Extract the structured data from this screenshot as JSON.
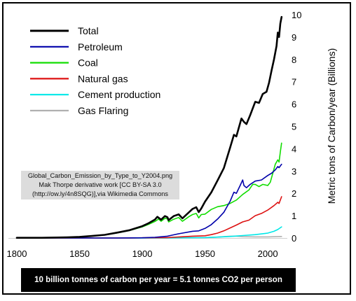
{
  "chart_data": {
    "type": "line",
    "title": "",
    "xlabel": "",
    "ylabel": "Metric tons of Carbon/year (Billions)",
    "xlim": [
      1800,
      2010
    ],
    "ylim": [
      0,
      10
    ],
    "x_ticks": [
      "1800",
      "1850",
      "1900",
      "1950",
      "2000"
    ],
    "y_ticks": [
      "0",
      "1",
      "2",
      "3",
      "4",
      "5",
      "6",
      "7",
      "8",
      "9",
      "10"
    ],
    "legend": {
      "placement": "top-left"
    },
    "series": [
      {
        "name": "Total",
        "color": "#000000",
        "width": 2.6,
        "points": [
          [
            1800,
            0.01
          ],
          [
            1820,
            0.01
          ],
          [
            1840,
            0.03
          ],
          [
            1850,
            0.05
          ],
          [
            1860,
            0.09
          ],
          [
            1870,
            0.14
          ],
          [
            1880,
            0.24
          ],
          [
            1890,
            0.35
          ],
          [
            1900,
            0.53
          ],
          [
            1905,
            0.66
          ],
          [
            1910,
            0.82
          ],
          [
            1912,
            0.95
          ],
          [
            1915,
            0.82
          ],
          [
            1918,
            0.98
          ],
          [
            1920,
            0.93
          ],
          [
            1921,
            0.8
          ],
          [
            1925,
            0.98
          ],
          [
            1929,
            1.06
          ],
          [
            1932,
            0.88
          ],
          [
            1937,
            1.14
          ],
          [
            1940,
            1.3
          ],
          [
            1943,
            1.38
          ],
          [
            1945,
            1.16
          ],
          [
            1947,
            1.32
          ],
          [
            1950,
            1.63
          ],
          [
            1955,
            2.04
          ],
          [
            1960,
            2.58
          ],
          [
            1965,
            3.13
          ],
          [
            1970,
            4.05
          ],
          [
            1973,
            4.62
          ],
          [
            1975,
            4.55
          ],
          [
            1979,
            5.35
          ],
          [
            1981,
            5.2
          ],
          [
            1983,
            5.1
          ],
          [
            1986,
            5.5
          ],
          [
            1990,
            6.1
          ],
          [
            1993,
            6.05
          ],
          [
            1996,
            6.45
          ],
          [
            1999,
            6.55
          ],
          [
            2001,
            6.95
          ],
          [
            2003,
            7.5
          ],
          [
            2005,
            8.0
          ],
          [
            2007,
            8.6
          ],
          [
            2008,
            9.2
          ],
          [
            2009,
            9.0
          ],
          [
            2010,
            9.6
          ],
          [
            2011,
            9.9
          ]
        ]
      },
      {
        "name": "Petroleum",
        "color": "#0000aa",
        "width": 1.6,
        "points": [
          [
            1800,
            0
          ],
          [
            1880,
            0
          ],
          [
            1900,
            0.01
          ],
          [
            1910,
            0.03
          ],
          [
            1920,
            0.08
          ],
          [
            1930,
            0.2
          ],
          [
            1940,
            0.3
          ],
          [
            1945,
            0.32
          ],
          [
            1950,
            0.43
          ],
          [
            1955,
            0.6
          ],
          [
            1960,
            0.85
          ],
          [
            1965,
            1.15
          ],
          [
            1970,
            1.65
          ],
          [
            1973,
            2.05
          ],
          [
            1975,
            2.0
          ],
          [
            1978,
            2.35
          ],
          [
            1980,
            2.6
          ],
          [
            1981,
            2.35
          ],
          [
            1983,
            2.25
          ],
          [
            1986,
            2.4
          ],
          [
            1990,
            2.55
          ],
          [
            1995,
            2.6
          ],
          [
            2000,
            2.8
          ],
          [
            2003,
            2.9
          ],
          [
            2006,
            3.05
          ],
          [
            2008,
            3.2
          ],
          [
            2009,
            3.15
          ],
          [
            2011,
            3.3
          ]
        ]
      },
      {
        "name": "Coal",
        "color": "#11dd00",
        "width": 1.6,
        "points": [
          [
            1800,
            0.01
          ],
          [
            1840,
            0.03
          ],
          [
            1850,
            0.05
          ],
          [
            1860,
            0.09
          ],
          [
            1870,
            0.14
          ],
          [
            1880,
            0.23
          ],
          [
            1890,
            0.34
          ],
          [
            1900,
            0.5
          ],
          [
            1905,
            0.61
          ],
          [
            1910,
            0.74
          ],
          [
            1913,
            0.85
          ],
          [
            1915,
            0.75
          ],
          [
            1918,
            0.88
          ],
          [
            1920,
            0.86
          ],
          [
            1921,
            0.72
          ],
          [
            1925,
            0.84
          ],
          [
            1929,
            0.92
          ],
          [
            1932,
            0.75
          ],
          [
            1937,
            0.95
          ],
          [
            1940,
            1.05
          ],
          [
            1943,
            1.1
          ],
          [
            1945,
            0.9
          ],
          [
            1947,
            1.05
          ],
          [
            1950,
            1.07
          ],
          [
            1955,
            1.28
          ],
          [
            1960,
            1.4
          ],
          [
            1965,
            1.45
          ],
          [
            1970,
            1.55
          ],
          [
            1975,
            1.7
          ],
          [
            1980,
            1.95
          ],
          [
            1985,
            2.15
          ],
          [
            1988,
            2.4
          ],
          [
            1990,
            2.4
          ],
          [
            1993,
            2.3
          ],
          [
            1996,
            2.4
          ],
          [
            2000,
            2.35
          ],
          [
            2002,
            2.5
          ],
          [
            2004,
            2.9
          ],
          [
            2006,
            3.3
          ],
          [
            2008,
            3.5
          ],
          [
            2009,
            3.4
          ],
          [
            2010,
            3.85
          ],
          [
            2011,
            4.25
          ]
        ]
      },
      {
        "name": "Natural gas",
        "color": "#dd1111",
        "width": 1.6,
        "points": [
          [
            1800,
            0
          ],
          [
            1890,
            0
          ],
          [
            1900,
            0.01
          ],
          [
            1920,
            0.02
          ],
          [
            1930,
            0.05
          ],
          [
            1940,
            0.08
          ],
          [
            1950,
            0.1
          ],
          [
            1955,
            0.15
          ],
          [
            1960,
            0.22
          ],
          [
            1965,
            0.32
          ],
          [
            1970,
            0.45
          ],
          [
            1975,
            0.58
          ],
          [
            1980,
            0.72
          ],
          [
            1985,
            0.8
          ],
          [
            1990,
            1.0
          ],
          [
            1995,
            1.1
          ],
          [
            2000,
            1.25
          ],
          [
            2005,
            1.45
          ],
          [
            2008,
            1.6
          ],
          [
            2009,
            1.55
          ],
          [
            2011,
            1.85
          ]
        ]
      },
      {
        "name": "Cement production",
        "color": "#00e8e8",
        "width": 1.6,
        "points": [
          [
            1800,
            0
          ],
          [
            1920,
            0
          ],
          [
            1930,
            0.01
          ],
          [
            1950,
            0.02
          ],
          [
            1960,
            0.04
          ],
          [
            1970,
            0.07
          ],
          [
            1980,
            0.11
          ],
          [
            1990,
            0.15
          ],
          [
            2000,
            0.22
          ],
          [
            2005,
            0.3
          ],
          [
            2008,
            0.38
          ],
          [
            2011,
            0.5
          ]
        ]
      },
      {
        "name": "Gas Flaring",
        "color": "#b0b0b0",
        "width": 1.6,
        "points": [
          [
            1800,
            0
          ],
          [
            1930,
            0
          ],
          [
            1950,
            0.02
          ],
          [
            1960,
            0.04
          ],
          [
            1970,
            0.08
          ],
          [
            1975,
            0.08
          ],
          [
            1980,
            0.06
          ],
          [
            1990,
            0.05
          ],
          [
            2000,
            0.05
          ],
          [
            2011,
            0.07
          ]
        ]
      }
    ]
  },
  "credit": {
    "line1": "Global_Carbon_Emission_by_Type_to_Y2004.png",
    "line2": "Mak Thorpe derivative work [CC BY-SA 3.0",
    "line3": "(http://ow.ly/4n8SQG)],via Wikimedia Commons"
  },
  "banner": "10 billion tonnes of carbon per year = 5.1 tonnes CO2 per person"
}
